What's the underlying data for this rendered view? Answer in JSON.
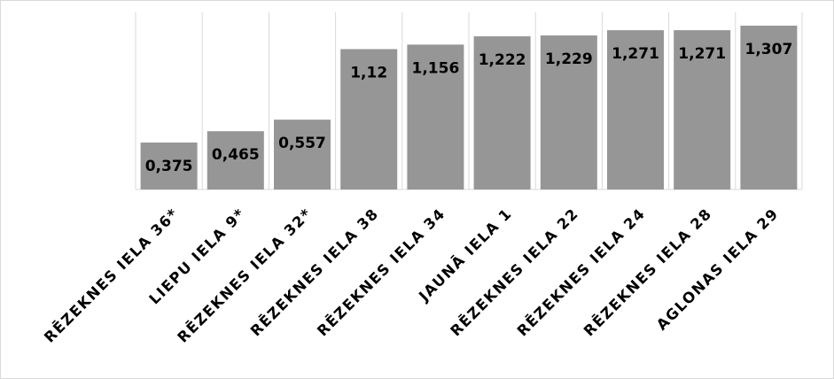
{
  "chart_data": {
    "type": "bar",
    "categories": [
      "RĒZEKNES IELA 36*",
      "LIEPU IELA 9*",
      "RĒZEKNES IELA 32*",
      "RĒZEKNES IELA 38",
      "RĒZEKNES IELA 34",
      "JAUNĀ IELA 1",
      "RĒZEKNES IELA 22",
      "RĒZEKNES IELA 24",
      "RĒZEKNES IELA 28",
      "AGLONAS IELA 29"
    ],
    "values": [
      0.375,
      0.465,
      0.557,
      1.12,
      1.156,
      1.222,
      1.229,
      1.271,
      1.271,
      1.307
    ],
    "value_labels": [
      "0,375",
      "0,465",
      "0,557",
      "1,12",
      "1,156",
      "1,222",
      "1,229",
      "1,271",
      "1,271",
      "1,307"
    ],
    "ylim": [
      0,
      1.4
    ],
    "grid": "vertical category separators",
    "legend": "none",
    "colors": {
      "bar": "#969696",
      "grid": "#d9d9d9",
      "text": "#000000"
    }
  }
}
